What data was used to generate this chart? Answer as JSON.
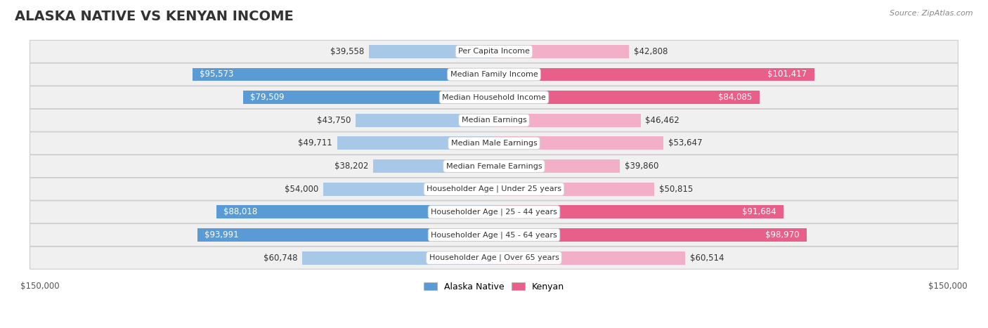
{
  "title": "ALASKA NATIVE VS KENYAN INCOME",
  "source": "Source: ZipAtlas.com",
  "categories": [
    "Per Capita Income",
    "Median Family Income",
    "Median Household Income",
    "Median Earnings",
    "Median Male Earnings",
    "Median Female Earnings",
    "Householder Age | Under 25 years",
    "Householder Age | 25 - 44 years",
    "Householder Age | 45 - 64 years",
    "Householder Age | Over 65 years"
  ],
  "alaska_values": [
    39558,
    95573,
    79509,
    43750,
    49711,
    38202,
    54000,
    88018,
    93991,
    60748
  ],
  "kenyan_values": [
    42808,
    101417,
    84085,
    46462,
    53647,
    39860,
    50815,
    91684,
    98970,
    60514
  ],
  "alaska_labels": [
    "$39,558",
    "$95,573",
    "$79,509",
    "$43,750",
    "$49,711",
    "$38,202",
    "$54,000",
    "$88,018",
    "$93,991",
    "$60,748"
  ],
  "kenyan_labels": [
    "$42,808",
    "$101,417",
    "$84,085",
    "$46,462",
    "$53,647",
    "$39,860",
    "$50,815",
    "$91,684",
    "$98,970",
    "$60,514"
  ],
  "alaska_threshold": 79000,
  "kenyan_threshold": 79000,
  "alaska_color_light": "#a8c8e8",
  "alaska_color_dark": "#5b9bd5",
  "kenyan_color_light": "#f4afc8",
  "kenyan_color_dark": "#e8608a",
  "max_value": 150000,
  "bar_height": 0.58,
  "fig_bg": "#ffffff",
  "row_bg": "#f0f0f0",
  "title_fontsize": 14,
  "label_fontsize": 8.5,
  "category_fontsize": 8,
  "source_fontsize": 8,
  "axis_label_fontsize": 8.5
}
